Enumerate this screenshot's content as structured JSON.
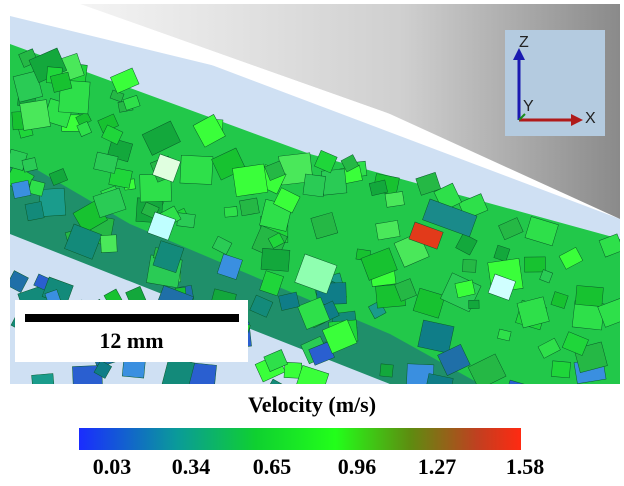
{
  "scale_bar": {
    "label": "12 mm"
  },
  "axes_indicator": {
    "z": "Z",
    "y": "Y",
    "x": "X"
  },
  "colorbar": {
    "title": "Velocity (m/s)",
    "ticks": [
      "0.03",
      "0.34",
      "0.65",
      "0.96",
      "1.27",
      "1.58"
    ],
    "colors": {
      "low": "#1a2cff",
      "mid": "#22ff1a",
      "high": "#ff2a12"
    }
  }
}
